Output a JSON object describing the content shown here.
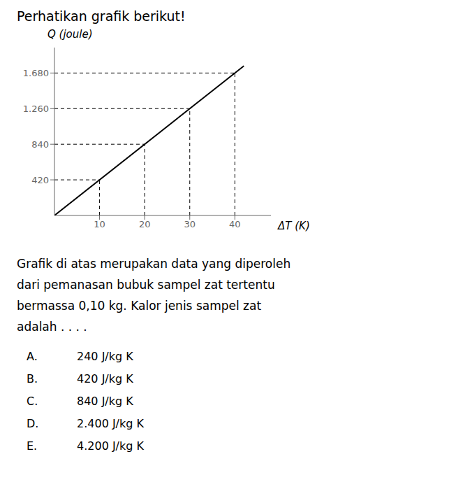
{
  "chart_data": {
    "type": "line",
    "title": "Perhatikan grafik berikut!",
    "xlabel": "ΔT (K)",
    "ylabel": "Q (joule)",
    "x": [
      0,
      42
    ],
    "values": [
      0,
      1764
    ],
    "color": "#000000",
    "dashed_points": [
      {
        "x": 10,
        "y": 420
      },
      {
        "x": 20,
        "y": 840
      },
      {
        "x": 30,
        "y": 1260
      },
      {
        "x": 40,
        "y": 1680
      }
    ],
    "xlim": [
      0,
      48
    ],
    "ylim": [
      0,
      1980
    ],
    "xticks": [
      10,
      20,
      30,
      40
    ],
    "yticks": [
      420,
      840,
      {
        "value": 1260,
        "label": "1.260"
      },
      {
        "value": 1680,
        "label": "1.680"
      }
    ],
    "grid": false,
    "annotations": [
      "Grafik di atas merupakan data yang diperoleh",
      "dari pemanasan bubuk sampel zat tertentu",
      "bermassa 0,10 kg. Kalor jenis sampel zat",
      "adalah . . . ."
    ],
    "options": [
      {
        "label": "A.",
        "text": "240 J/kg K"
      },
      {
        "label": "B.",
        "text": "420 J/kg K"
      },
      {
        "label": "C.",
        "text": "840 J/kg K"
      },
      {
        "label": "D.",
        "text": "2.400 J/kg K"
      },
      {
        "label": "E.",
        "text": "4.200 J/kg K"
      }
    ]
  }
}
